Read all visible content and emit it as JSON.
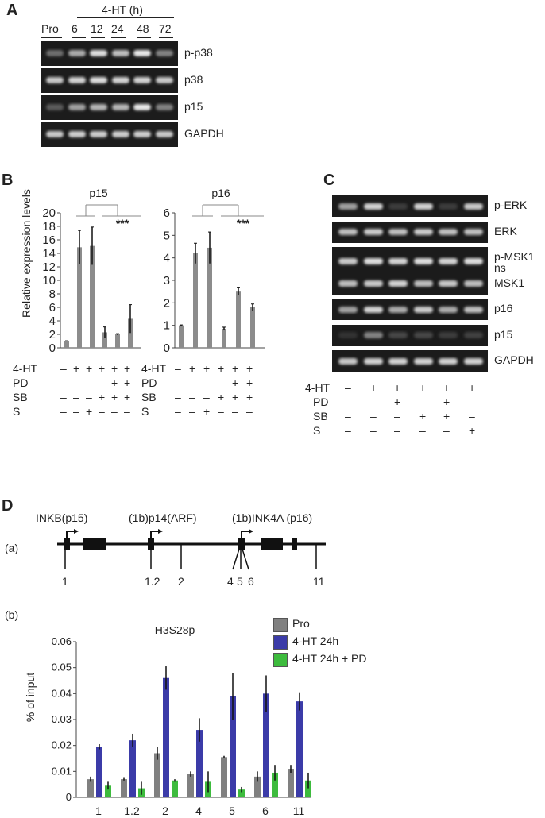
{
  "panelA": {
    "letter": "A",
    "header": "4-HT (h)",
    "lanes": [
      "Pro",
      "6",
      "12",
      "24",
      "48",
      "72"
    ],
    "blots": [
      {
        "label": "p-p38",
        "intensity": [
          0.35,
          0.65,
          0.9,
          0.75,
          0.95,
          0.45
        ]
      },
      {
        "label": "p38",
        "intensity": [
          0.8,
          0.85,
          0.9,
          0.85,
          0.85,
          0.8
        ]
      },
      {
        "label": "p15",
        "intensity": [
          0.25,
          0.6,
          0.7,
          0.7,
          0.95,
          0.45
        ]
      },
      {
        "label": "GAPDH",
        "intensity": [
          0.8,
          0.82,
          0.82,
          0.82,
          0.82,
          0.8
        ]
      }
    ]
  },
  "panelB": {
    "letter": "B",
    "ylabel": "Relative expression levels",
    "significance": "***",
    "row_labels": [
      "4-HT",
      "PD",
      "SB",
      "S"
    ],
    "row_signs": [
      [
        "–",
        "+",
        "+",
        "+",
        "+",
        "+"
      ],
      [
        "–",
        "–",
        "–",
        "–",
        "+",
        "+"
      ],
      [
        "–",
        "–",
        "–",
        "+",
        "+",
        "+"
      ],
      [
        "–",
        "–",
        "+",
        "–",
        "–",
        "–"
      ]
    ]
  },
  "chart_data": [
    {
      "type": "bar",
      "title": "p15",
      "ylabel": "Relative expression levels",
      "ylim": [
        0,
        20
      ],
      "yticks": [
        0,
        2,
        4,
        6,
        8,
        10,
        12,
        14,
        16,
        18,
        20
      ],
      "values": [
        1,
        14.9,
        15.1,
        2.3,
        2.0,
        4.3
      ],
      "errors": [
        0.05,
        2.5,
        2.8,
        0.8,
        0.1,
        2.1
      ],
      "significance": "***",
      "color": "#8c8c8c"
    },
    {
      "type": "bar",
      "title": "p16",
      "ylim": [
        0,
        6
      ],
      "yticks": [
        0,
        1,
        2,
        3,
        4,
        5,
        6
      ],
      "values": [
        1.0,
        4.2,
        4.45,
        0.85,
        2.5,
        1.8
      ],
      "errors": [
        0.02,
        0.45,
        0.7,
        0.07,
        0.17,
        0.15
      ],
      "significance": "***",
      "color": "#8c8c8c"
    },
    {
      "type": "bar",
      "title": "H3S28p",
      "ylabel": "% of input",
      "ylim": [
        0,
        0.06
      ],
      "yticks": [
        "0",
        "0.01",
        "0.02",
        "0.03",
        "0.04",
        "0.05",
        "0.06"
      ],
      "categories": [
        "1",
        "1.2",
        "2",
        "4",
        "5",
        "6",
        "11"
      ],
      "legend_position": "top-right",
      "series": [
        {
          "name": "Pro",
          "color": "#808080",
          "values": [
            0.007,
            0.007,
            0.017,
            0.009,
            0.0155,
            0.008,
            0.011
          ],
          "errors": [
            0.001,
            0.0005,
            0.0025,
            0.001,
            0.0005,
            0.002,
            0.0015
          ]
        },
        {
          "name": "4-HT 24h",
          "color": "#3b3ba8",
          "values": [
            0.0195,
            0.022,
            0.046,
            0.026,
            0.039,
            0.04,
            0.037
          ],
          "errors": [
            0.001,
            0.0025,
            0.0045,
            0.0045,
            0.009,
            0.007,
            0.0035
          ]
        },
        {
          "name": "4-HT 24h + PD",
          "color": "#3dbb3d",
          "values": [
            0.0045,
            0.0035,
            0.0065,
            0.006,
            0.003,
            0.0095,
            0.0065
          ],
          "errors": [
            0.0015,
            0.0025,
            0.0005,
            0.004,
            0.001,
            0.003,
            0.003
          ]
        }
      ]
    }
  ],
  "panelC": {
    "letter": "C",
    "blots": [
      {
        "label": "p-ERK",
        "intensity": [
          0.6,
          0.85,
          0.1,
          0.85,
          0.1,
          0.8
        ]
      },
      {
        "label": "ERK",
        "intensity": [
          0.75,
          0.8,
          0.75,
          0.8,
          0.75,
          0.75
        ]
      },
      {
        "label": "p-MSK1",
        "label2": "ns",
        "intensity": [
          0.8,
          0.9,
          0.85,
          0.9,
          0.85,
          0.9
        ]
      },
      {
        "label": "MSK1",
        "intensity": [
          0.75,
          0.8,
          0.85,
          0.75,
          0.8,
          0.75
        ]
      },
      {
        "label": "p16",
        "intensity": [
          0.6,
          0.85,
          0.65,
          0.8,
          0.65,
          0.75
        ]
      },
      {
        "label": "p15",
        "intensity": [
          0.05,
          0.45,
          0.15,
          0.15,
          0.1,
          0.12
        ]
      },
      {
        "label": "GAPDH",
        "intensity": [
          0.8,
          0.85,
          0.85,
          0.85,
          0.85,
          0.85
        ]
      }
    ],
    "row_labels": [
      "4-HT",
      "PD",
      "SB",
      "S"
    ],
    "row_signs": [
      [
        "–",
        "+",
        "+",
        "+",
        "+",
        "+"
      ],
      [
        "–",
        "–",
        "+",
        "–",
        "+",
        "–"
      ],
      [
        "–",
        "–",
        "–",
        "+",
        "+",
        "–"
      ],
      [
        "–",
        "–",
        "–",
        "–",
        "–",
        "+"
      ]
    ]
  },
  "panelD": {
    "letter": "D",
    "sub_a": "(a)",
    "sub_b": "(b)",
    "gene_labels": [
      "INKB(p15)",
      "(1b)p14(ARF)",
      "(1b)INK4A (p16)"
    ],
    "site_labels": [
      "1",
      "1.2",
      "2",
      "4",
      "5",
      "6",
      "11"
    ]
  }
}
